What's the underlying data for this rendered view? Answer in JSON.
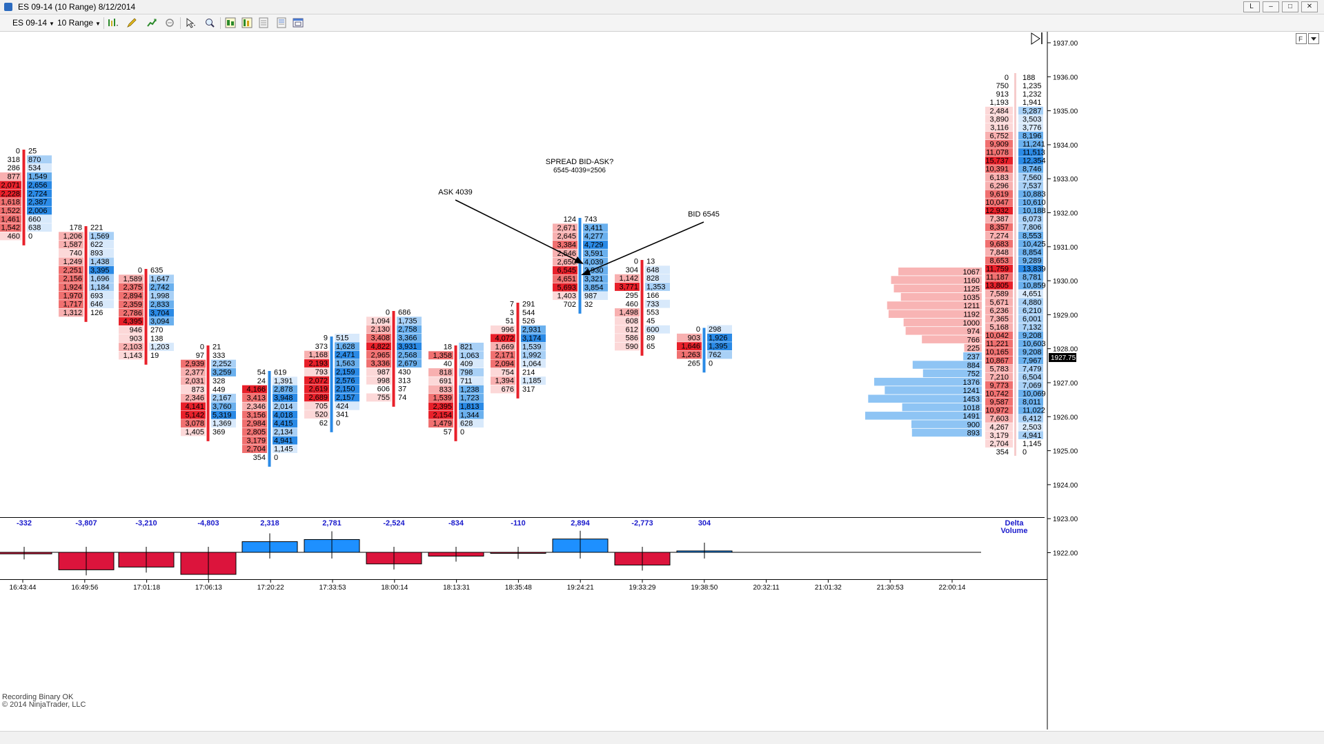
{
  "window": {
    "title": "ES 09-14 (10 Range)  8/12/2014",
    "buttons": [
      "L",
      "–",
      "□",
      "✕"
    ]
  },
  "toolbar": {
    "instrument": "ES 09-14",
    "interval": "10 Range"
  },
  "status": {
    "recording": "Recording Binary OK",
    "copyright": "© 2014 NinjaTrader, LLC"
  },
  "colors": {
    "ask_red": "#e8202a",
    "bid_blue": "#2a8ae6",
    "delta_negative": "#dc143c",
    "delta_positive": "#1e90ff",
    "label_blue": "#1a1acc",
    "price_marker_bg": "#000000"
  },
  "chart_data": [
    {
      "type": "footprint",
      "title": "",
      "ylim": [
        1923,
        1937
      ],
      "y_tick_labels": [
        "1937.00",
        "1936.00",
        "1935.00",
        "1934.00",
        "1933.00",
        "1932.00",
        "1931.00",
        "1930.00",
        "1929.00",
        "1928.00",
        "1927.00",
        "1926.00",
        "1925.00",
        "1924.00",
        "1923.00",
        "1922.00"
      ],
      "current_price": "1927.75",
      "x_tick_labels": [
        "16:43:44",
        "16:49:56",
        "17:01:18",
        "17:06:13",
        "17:20:22",
        "17:33:53",
        "18:00:14",
        "18:13:31",
        "18:35:48",
        "19:24:21",
        "19:33:29",
        "19:38:50",
        "20:32:11",
        "21:01:32",
        "21:30:53",
        "22:00:14"
      ],
      "bars": [
        {
          "bid": [
            "0",
            "318",
            "286",
            "877",
            "2,071",
            "2,228",
            "1,618",
            "1,522",
            "1,461",
            "1,542",
            "460"
          ],
          "ask": [
            "25",
            "870",
            "534",
            "1,549",
            "2,656",
            "2,724",
            "2,387",
            "2,006",
            "660",
            "638",
            "0"
          ]
        },
        {
          "bid": [
            "178",
            "1,206",
            "1,587",
            "740",
            "1,249",
            "2,251",
            "2,156",
            "1,924",
            "1,970",
            "1,717",
            "1,312"
          ],
          "ask": [
            "221",
            "1,569",
            "622",
            "893",
            "1,438",
            "3,395",
            "1,696",
            "1,184",
            "693",
            "646",
            "126"
          ]
        },
        {
          "bid": [
            "0",
            "1,589",
            "2,375",
            "2,894",
            "2,359",
            "2,786",
            "4,395",
            "946",
            "903",
            "2,103",
            "1,143"
          ],
          "ask": [
            "635",
            "1,647",
            "2,742",
            "1,998",
            "2,833",
            "3,704",
            "3,094",
            "270",
            "138",
            "1,203",
            "19"
          ]
        },
        {
          "bid": [
            "0",
            "97",
            "2,939",
            "2,377",
            "2,031",
            "873",
            "2,346",
            "4,141",
            "5,142",
            "3,078",
            "1,405"
          ],
          "ask": [
            "21",
            "333",
            "2,252",
            "3,259",
            "328",
            "449",
            "2,167",
            "3,760",
            "5,319",
            "1,369",
            "369"
          ]
        },
        {
          "bid": [
            "54",
            "24",
            "4,166",
            "3,413",
            "2,346",
            "3,156",
            "2,984",
            "2,805",
            "3,179",
            "2,704",
            "354"
          ],
          "ask": [
            "619",
            "1,391",
            "2,878",
            "3,948",
            "2,014",
            "4,018",
            "4,415",
            "2,134",
            "4,941",
            "1,145",
            "0"
          ]
        },
        {
          "bid": [
            "9",
            "373",
            "1,168",
            "2,193",
            "793",
            "2,072",
            "2,619",
            "2,689",
            "705",
            "520",
            "62"
          ],
          "ask": [
            "515",
            "1,628",
            "2,471",
            "1,563",
            "2,159",
            "2,576",
            "2,150",
            "2,157",
            "424",
            "341",
            "0"
          ]
        },
        {
          "bid": [
            "0",
            "1,094",
            "2,130",
            "3,408",
            "4,822",
            "2,965",
            "3,336",
            "987",
            "998",
            "606",
            "755"
          ],
          "ask": [
            "686",
            "1,735",
            "2,758",
            "3,366",
            "3,931",
            "2,568",
            "2,679",
            "430",
            "313",
            "37",
            "74"
          ]
        },
        {
          "bid": [
            "18",
            "1,358",
            "40",
            "818",
            "691",
            "833",
            "1,539",
            "2,395",
            "2,154",
            "1,479",
            "57"
          ],
          "ask": [
            "821",
            "1,063",
            "409",
            "798",
            "711",
            "1,238",
            "1,723",
            "1,813",
            "1,344",
            "628",
            "0"
          ]
        },
        {
          "bid": [
            "7",
            "3",
            "51",
            "996",
            "4,072",
            "1,669",
            "2,171",
            "2,094",
            "754",
            "1,394",
            "676"
          ],
          "ask": [
            "291",
            "544",
            "526",
            "2,931",
            "3,174",
            "1,539",
            "1,992",
            "1,064",
            "214",
            "1,185",
            "317"
          ]
        },
        {
          "bid": [
            "124",
            "2,671",
            "2,645",
            "3,384",
            "2,546",
            "2,650",
            "6,545",
            "4,651",
            "5,693",
            "1,403",
            "702"
          ],
          "ask": [
            "743",
            "3,411",
            "4,277",
            "4,729",
            "3,591",
            "4,039",
            "3,930",
            "3,321",
            "3,854",
            "987",
            "32"
          ]
        },
        {
          "bid": [
            "0",
            "304",
            "1,142",
            "3,771",
            "295",
            "460",
            "1,498",
            "608",
            "612",
            "586",
            "590"
          ],
          "ask": [
            "13",
            "648",
            "828",
            "1,353",
            "166",
            "733",
            "553",
            "45",
            "600",
            "89",
            "65"
          ]
        },
        {
          "bid": [
            "0",
            "903",
            "1,646",
            "1,263",
            "265"
          ],
          "ask": [
            "298",
            "1,926",
            "1,395",
            "762",
            "0"
          ]
        }
      ],
      "profile_column": {
        "bid": [
          "0",
          "750",
          "913",
          "1,193",
          "2,484",
          "3,890",
          "3,116",
          "6,752",
          "9,909",
          "11,078",
          "15,737",
          "10,391",
          "6,183",
          "6,296",
          "9,619",
          "10,047",
          "12,932",
          "7,387",
          "8,357",
          "7,274",
          "9,683",
          "7,848",
          "8,653",
          "11,759",
          "11,187",
          "13,805",
          "7,589",
          "5,671",
          "6,236",
          "7,365",
          "5,168",
          "10,042",
          "11,221",
          "10,165",
          "10,867",
          "5,783",
          "7,210",
          "9,773",
          "10,742",
          "9,587",
          "10,972",
          "7,603",
          "4,267",
          "3,179",
          "2,704",
          "354"
        ],
        "ask": [
          "188",
          "1,235",
          "1,232",
          "1,941",
          "5,287",
          "3,503",
          "3,776",
          "8,196",
          "11,241",
          "11,513",
          "12,354",
          "8,746",
          "7,560",
          "7,537",
          "10,883",
          "10,610",
          "10,188",
          "6,073",
          "7,806",
          "8,553",
          "10,425",
          "8,854",
          "9,289",
          "13,839",
          "8,781",
          "10,859",
          "4,651",
          "4,880",
          "6,210",
          "6,001",
          "7,132",
          "9,208",
          "10,603",
          "9,208",
          "7,967",
          "7,479",
          "6,504",
          "7,069",
          "10,069",
          "8,011",
          "11,022",
          "6,412",
          "2,503",
          "4,941",
          "1,145",
          "0"
        ]
      },
      "volume_profile": {
        "sell_labels": [
          "1067",
          "1160",
          "1125",
          "1035",
          "1211",
          "1192",
          "1000",
          "974",
          "766",
          "225"
        ],
        "buy_labels": [
          "237",
          "884",
          "752",
          "1376",
          "1241",
          "1453",
          "1018",
          "1491",
          "900",
          "893"
        ]
      },
      "annotations": [
        {
          "text": "SPREAD BID-ASK?"
        },
        {
          "text": "6545-4039=2506"
        },
        {
          "text": "ASK 4039"
        },
        {
          "text": "BID 6545"
        }
      ]
    },
    {
      "type": "bar",
      "title": "Delta Volume",
      "title_lines": [
        "Delta",
        "Volume"
      ],
      "categories": [
        "16:43:44",
        "16:49:56",
        "17:01:18",
        "17:06:13",
        "17:20:22",
        "17:33:53",
        "18:00:14",
        "18:13:31",
        "18:35:48",
        "19:24:21",
        "19:33:29",
        "19:38:50"
      ],
      "values": [
        -332,
        -3807,
        -3210,
        -4803,
        2318,
        2781,
        -2524,
        -834,
        -110,
        2894,
        -2773,
        304
      ],
      "value_labels": [
        "-332",
        "-3,807",
        "-3,210",
        "-4,803",
        "2,318",
        "2,781",
        "-2,524",
        "-834",
        "-110",
        "2,894",
        "-2,773",
        "304"
      ]
    }
  ]
}
